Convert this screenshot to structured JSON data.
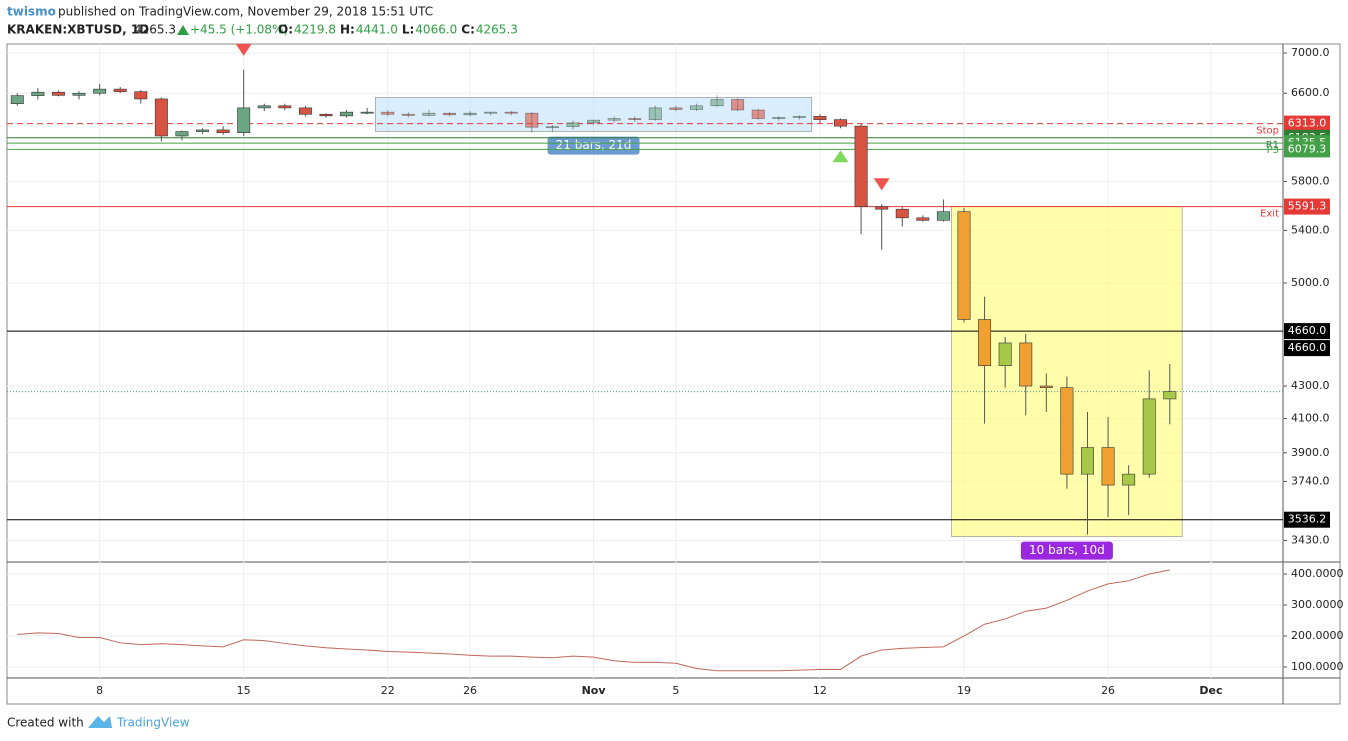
{
  "header": {
    "author": "twismo",
    "published": "published on TradingView.com, November 29, 2018 15:51 UTC",
    "symbol": "KRAKEN:XBTUSD, 1D",
    "last": "4265.3",
    "change": "+45.5 (+1.08%)",
    "ohlc": [
      {
        "k": "O:",
        "v": "4219.8"
      },
      {
        "k": "H:",
        "v": "4441.0"
      },
      {
        "k": "L:",
        "v": "4066.0"
      },
      {
        "k": "C:",
        "v": "4265.3"
      }
    ]
  },
  "footer": {
    "created": "Created with",
    "brand": "TradingView"
  },
  "chart_data": {
    "type": "candlestick",
    "log_scale": true,
    "ylim": [
      3324,
      7093
    ],
    "yticks": [
      {
        "value": 7000,
        "label": "7000.0"
      },
      {
        "value": 6600,
        "label": "6600.0"
      },
      {
        "value": 5800,
        "label": "5800.0"
      },
      {
        "value": 5400,
        "label": "5400.0"
      },
      {
        "value": 5000,
        "label": "5000.0"
      },
      {
        "value": 4300,
        "label": "4300.0"
      },
      {
        "value": 4100,
        "label": "4100.0"
      },
      {
        "value": 3900,
        "label": "3900.0"
      },
      {
        "value": 3740,
        "label": "3740.0"
      },
      {
        "value": 3430,
        "label": "3430.0"
      }
    ],
    "xticks": [
      {
        "value": 4,
        "label": "8"
      },
      {
        "value": 11,
        "label": "15"
      },
      {
        "value": 18,
        "label": "22"
      },
      {
        "value": 22,
        "label": "26"
      },
      {
        "value": 28,
        "label": "Nov"
      },
      {
        "value": 32,
        "label": "5"
      },
      {
        "value": 39,
        "label": "12"
      },
      {
        "value": 46,
        "label": "19"
      },
      {
        "value": 53,
        "label": "26"
      },
      {
        "value": 58,
        "label": "Dec"
      }
    ],
    "xlim": [
      -0.5,
      61.5
    ],
    "colors": {
      "up": "#6ba583",
      "down": "#d75442",
      "zone_up": "#a8c84a",
      "zone_down": "#f0a030"
    },
    "open": [
      6500,
      6577,
      6610,
      6580,
      6600,
      6640,
      6615,
      6545,
      6200,
      6240,
      6255,
      6230,
      6460,
      6480,
      6460,
      6400,
      6385,
      6410,
      6420,
      6400,
      6390,
      6410,
      6395,
      6410,
      6420,
      6410,
      6275,
      6285,
      6320,
      6345,
      6360,
      6350,
      6460,
      6445,
      6480,
      6540,
      6440,
      6360,
      6370,
      6380,
      6350,
      6290,
      5590,
      5570,
      5500,
      5480,
      5550,
      4740,
      4430,
      4580,
      4300,
      4290,
      3780,
      3930,
      3720,
      3780,
      4219.8
    ],
    "high": [
      6600,
      6650,
      6625,
      6620,
      6690,
      6660,
      6630,
      6560,
      6250,
      6270,
      6290,
      6830,
      6500,
      6500,
      6480,
      6410,
      6440,
      6460,
      6440,
      6420,
      6440,
      6420,
      6430,
      6420,
      6430,
      6420,
      6300,
      6340,
      6350,
      6380,
      6380,
      6480,
      6480,
      6500,
      6580,
      6550,
      6450,
      6380,
      6390,
      6400,
      6360,
      6310,
      5610,
      5590,
      5520,
      5650,
      5580,
      4900,
      4620,
      4640,
      4380,
      4360,
      4140,
      4110,
      3830,
      4400,
      4441.0
    ],
    "low": [
      6480,
      6540,
      6570,
      6540,
      6580,
      6600,
      6500,
      6150,
      6160,
      6220,
      6210,
      6200,
      6430,
      6440,
      6380,
      6370,
      6370,
      6400,
      6380,
      6370,
      6380,
      6380,
      6380,
      6390,
      6390,
      6230,
      6240,
      6260,
      6300,
      6320,
      6330,
      6340,
      6430,
      6430,
      6470,
      6430,
      6350,
      6340,
      6350,
      6320,
      6270,
      5370,
      5250,
      5430,
      5470,
      5470,
      4720,
      4070,
      4290,
      4120,
      4140,
      3700,
      3460,
      3550,
      3560,
      3760,
      4066.0
    ],
    "close": [
      6577,
      6610,
      6580,
      6600,
      6640,
      6615,
      6545,
      6200,
      6240,
      6255,
      6230,
      6460,
      6480,
      6460,
      6400,
      6385,
      6420,
      6420,
      6400,
      6390,
      6410,
      6395,
      6410,
      6420,
      6410,
      6280,
      6285,
      6320,
      6345,
      6360,
      6350,
      6460,
      6445,
      6480,
      6540,
      6440,
      6360,
      6370,
      6380,
      6350,
      6290,
      5590,
      5570,
      5500,
      5480,
      5550,
      4740,
      4430,
      4580,
      4300,
      4290,
      3780,
      3930,
      3720,
      3780,
      4220,
      4265.3
    ],
    "current": 4265.3,
    "levels": [
      {
        "value": 6313,
        "label": "6313.0",
        "name": "Stop",
        "color": "#e53935",
        "dash": true
      },
      {
        "value": 6183.5,
        "label": "6183.5",
        "name": "R1",
        "color": "#2e7d32",
        "dash": false
      },
      {
        "value": 6135.5,
        "label": "6135.5",
        "name": "P3",
        "color": "#43a047",
        "dash": false
      },
      {
        "value": 6079.3,
        "label": "6079.3",
        "color": "#43a047",
        "dash": false
      },
      {
        "value": 5591.3,
        "label": "5591.3",
        "name": "Exit",
        "color": "#e53935",
        "dash": false
      },
      {
        "value": 4660,
        "label": "4660.0",
        "color": "#000000",
        "dash": false
      },
      {
        "value": 3536.2,
        "label": "3536.2",
        "color": "#000000",
        "dash": false
      }
    ],
    "ranges": [
      {
        "label": "21 bars, 21d",
        "start": 18,
        "end": 38,
        "top": 6560,
        "bottom": 6240,
        "color": "#bbdefb",
        "tag": "#6b9bd1"
      },
      {
        "label": "10 bars, 10d",
        "start": 46,
        "end": 56,
        "top": 5591.3,
        "bottom": 3450,
        "color": "#ffff66",
        "tag": "#9c27e0"
      }
    ],
    "markers": [
      {
        "index": 11,
        "dir": "down"
      },
      {
        "index": 40,
        "dir": "up"
      },
      {
        "index": 42,
        "dir": "down"
      }
    ],
    "indicator": {
      "color": "#c0685a",
      "ylim": [
        64.5,
        438.7
      ],
      "yticks": [
        {
          "value": 400,
          "label": "400.0000"
        },
        {
          "value": 300,
          "label": "300.0000"
        },
        {
          "value": 200,
          "label": "200.0000"
        },
        {
          "value": 100,
          "label": "100.0000"
        }
      ],
      "values": [
        205,
        210,
        208,
        195,
        195,
        178,
        172,
        175,
        172,
        168,
        165,
        188,
        185,
        176,
        168,
        162,
        158,
        155,
        150,
        148,
        145,
        142,
        138,
        135,
        135,
        132,
        130,
        135,
        132,
        120,
        115,
        115,
        112,
        95,
        88,
        88,
        88,
        88,
        90,
        92,
        92,
        135,
        155,
        160,
        163,
        165,
        200,
        238,
        255,
        280,
        290,
        315,
        345,
        368,
        378,
        400,
        413
      ]
    }
  }
}
